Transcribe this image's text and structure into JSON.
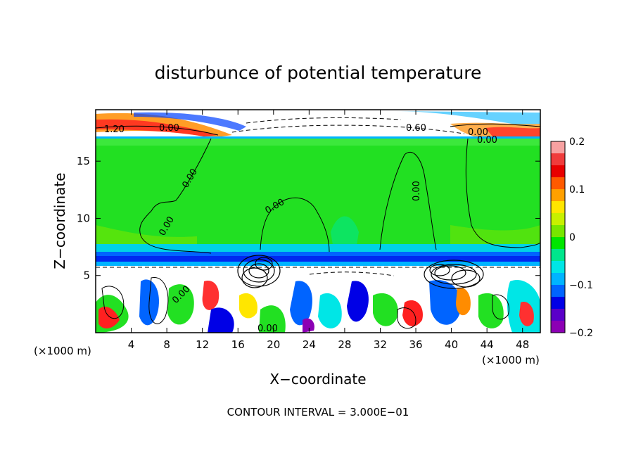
{
  "chart_data": {
    "type": "heatmap",
    "title": "disturbunce of potential temperature",
    "xlabel": "X−coordinate",
    "ylabel": "Z−coordinate",
    "x_unit_left": "(×1000 m)",
    "x_unit_right": "(×1000 m)",
    "xlim": [
      0,
      50
    ],
    "ylim": [
      0,
      19.5
    ],
    "x_ticks": [
      4,
      8,
      12,
      16,
      20,
      24,
      28,
      32,
      36,
      40,
      44,
      48
    ],
    "y_ticks": [
      5,
      10,
      15
    ],
    "colorbar": {
      "range": [
        -0.2,
        0.2
      ],
      "ticks": [
        0.2,
        0.1,
        0,
        -0.1,
        -0.2
      ],
      "tick_labels": [
        "0.2",
        "0.1",
        "0",
        "−0.1",
        "−0.2"
      ],
      "colors": [
        "#f7a1a1",
        "#f03c3c",
        "#e80000",
        "#ff5a00",
        "#ffa000",
        "#ffe600",
        "#c8f000",
        "#78e600",
        "#00e600",
        "#00e68c",
        "#00e6e6",
        "#00b4ff",
        "#0064ff",
        "#0000e6",
        "#5a00c8",
        "#8c00b4"
      ]
    },
    "contour_labels": [
      "1.20",
      "0.00",
      "0.60",
      "0.00",
      "0.00",
      "0.00",
      "0.00",
      "0.00",
      "0.00",
      "0.00",
      "0.00"
    ],
    "footer": "CONTOUR INTERVAL = 3.000E−01"
  }
}
